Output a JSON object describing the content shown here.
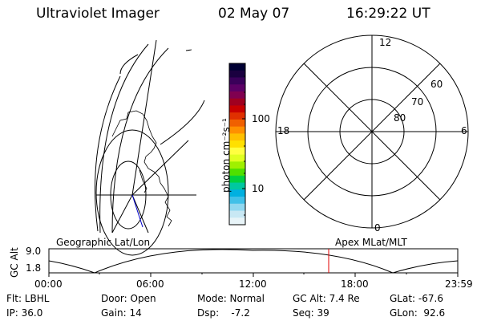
{
  "header": {
    "title": "Ultraviolet Imager",
    "date": "02 May 07",
    "time": "16:29:22 UT"
  },
  "colorbar": {
    "label": "photon cm⁻²s⁻¹",
    "ticks": [
      "100",
      "10"
    ],
    "colors": [
      "#000033",
      "#1a0040",
      "#3a005a",
      "#5c0066",
      "#800050",
      "#a00020",
      "#c80000",
      "#e03000",
      "#f06000",
      "#ff9000",
      "#ffc000",
      "#ffe000",
      "#ffff40",
      "#e0ff20",
      "#a0f000",
      "#50e000",
      "#00d040",
      "#00c8a0",
      "#00b0e0",
      "#40c0e8",
      "#90d8f0",
      "#c8e8f4",
      "#e8f4f8"
    ]
  },
  "polar": {
    "labels": [
      "12",
      "60",
      "70",
      "80",
      "18",
      "6",
      "0"
    ]
  },
  "timeline": {
    "left_axis_label": "GC Alt",
    "y_top": "9.0",
    "y_bottom": "1.8",
    "left_title": "Geographic Lat/Lon",
    "right_title": "Apex MLat/MLT",
    "ticks": [
      "00:00",
      "06:00",
      "12:00",
      "18:00",
      "23:59"
    ]
  },
  "info": {
    "row1": [
      "Flt: LBHL",
      "Door: Open",
      "Mode: Normal",
      "GC Alt: 7.4 Re",
      "GLat: -67.6"
    ],
    "row2": [
      "IP: 36.0",
      "Gain: 14",
      "Dsp:    -7.2",
      "Seq: 39",
      "GLon:  92.6"
    ]
  }
}
